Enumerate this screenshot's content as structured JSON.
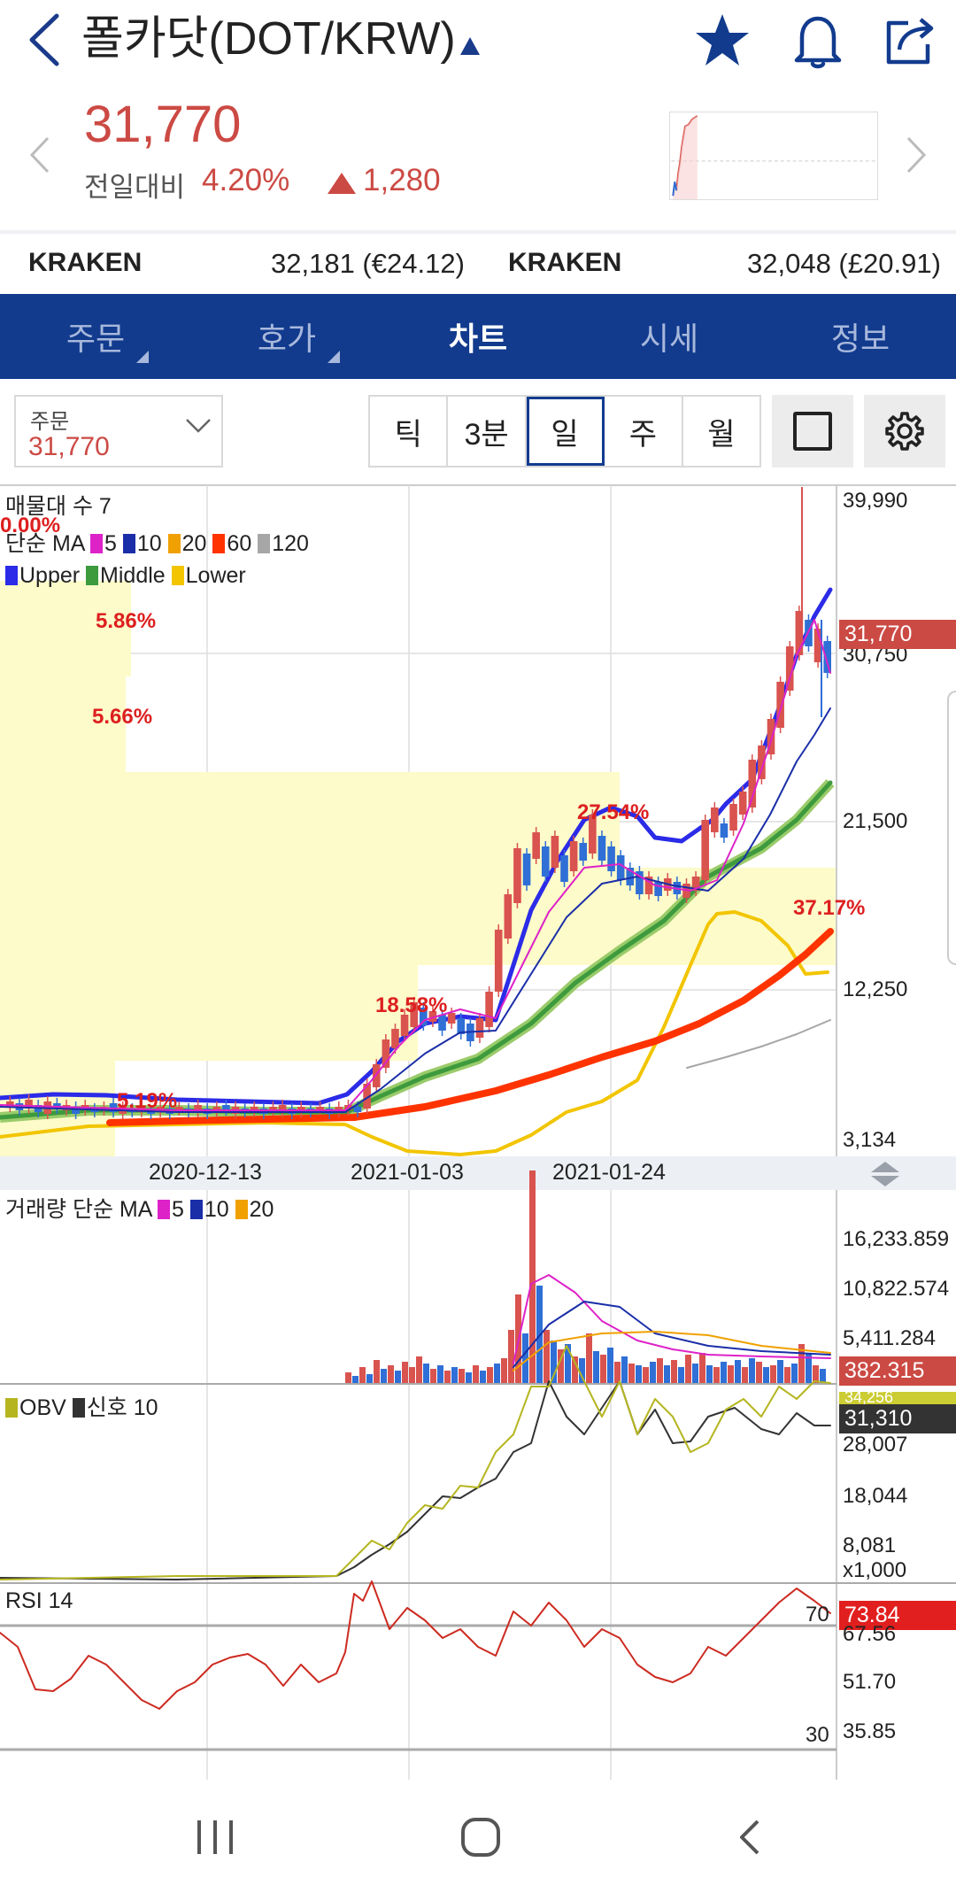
{
  "header": {
    "title": "폴카닷(DOT/KRW)"
  },
  "ticker": {
    "price": "31,770",
    "diff_label": "전일대비",
    "diff_pct": "4.20%",
    "diff_amount": "1,280"
  },
  "exchanges": [
    {
      "name": "KRAKEN",
      "value": "32,181 (€24.12)"
    },
    {
      "name": "KRAKEN",
      "value": "32,048 (£20.91)"
    }
  ],
  "tabs": [
    {
      "label": "주문",
      "active": false
    },
    {
      "label": "호가",
      "active": false
    },
    {
      "label": "차트",
      "active": true
    },
    {
      "label": "시세",
      "active": false
    },
    {
      "label": "정보",
      "active": false
    }
  ],
  "order_select": {
    "label": "주문",
    "value": "31,770"
  },
  "periods": [
    {
      "label": "틱",
      "active": false
    },
    {
      "label": "3분",
      "active": false
    },
    {
      "label": "일",
      "active": true
    },
    {
      "label": "주",
      "active": false
    },
    {
      "label": "월",
      "active": false
    }
  ],
  "price_panel": {
    "volume_profile_label": "매물대 수 7",
    "ma_label": "단순 MA",
    "ma_periods": [
      "5",
      "10",
      "20",
      "60",
      "120"
    ],
    "bb_labels": [
      "Upper",
      "Middle",
      "Lower"
    ],
    "profile_pcts": [
      "0.00%",
      "5.86%",
      "5.66%",
      "27.54%",
      "37.17%",
      "18.58%",
      "5.19%"
    ],
    "y_ticks": [
      "39,990",
      "30,750",
      "21,500",
      "12,250",
      "3,134"
    ],
    "last_price": "31,770",
    "x_ticks": [
      "2020-12-13",
      "2021-01-03",
      "2021-01-24"
    ]
  },
  "volume_panel": {
    "label": "거래량 단순 MA",
    "ma_periods": [
      "5",
      "10",
      "20"
    ],
    "y_ticks": [
      "16,233.859",
      "10,822.574",
      "5,411.284"
    ],
    "last_value": "382.315"
  },
  "obv_panel": {
    "obv_label": "OBV",
    "signal_label": "신호 10",
    "y_ticks": [
      "28,007",
      "18,044",
      "8,081"
    ],
    "unit": "x1,000",
    "last_value": "31,310",
    "overlap_value": "34,256"
  },
  "rsi_panel": {
    "label": "RSI 14",
    "y_ticks": [
      "67.56",
      "51.70",
      "35.85"
    ],
    "levels": [
      "70",
      "30"
    ],
    "last_value": "73.84"
  },
  "colors": {
    "up": "#d9534f",
    "down": "#2f6fd6",
    "ma5": "#dd22c8",
    "ma10": "#1a2ea8",
    "ma20": "#f0a000",
    "ma60": "#ff3300",
    "ma120": "#a6a6a6",
    "bb_upper": "#2b2be8",
    "bb_middle": "#3d9a3d",
    "bb_lower": "#f2c500",
    "nav_blue": "#123b8e"
  }
}
